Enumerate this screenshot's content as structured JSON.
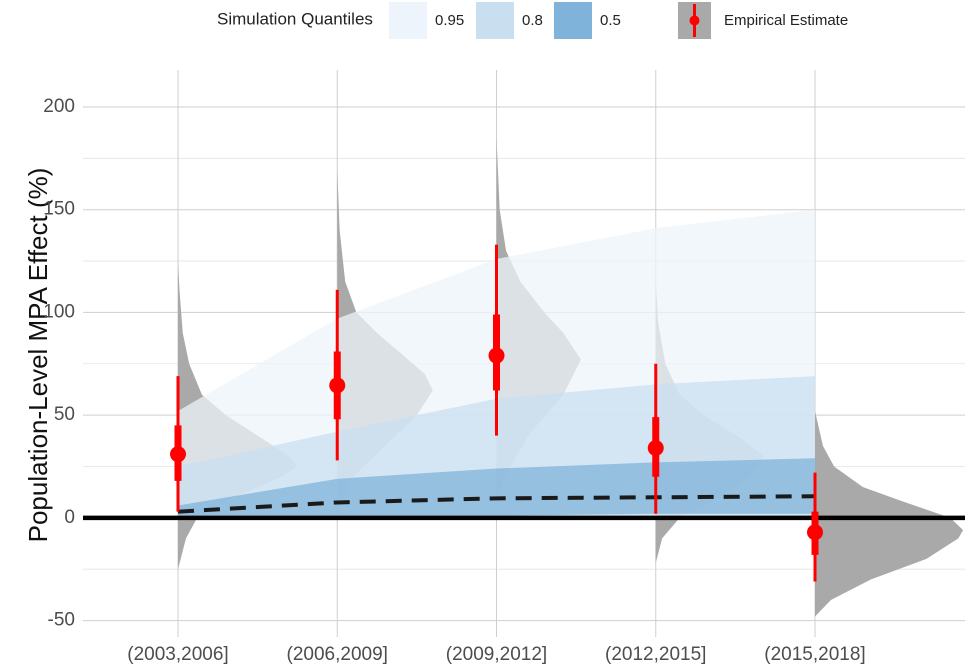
{
  "chart_data": {
    "type": "violin_ribbon",
    "y_label": "Population-Level MPA Effect (%)",
    "legend_title": "Simulation Quantiles",
    "categories": [
      "(2003,2006]",
      "(2006,2009]",
      "(2009,2012]",
      "(2012,2015]",
      "(2015,2018]"
    ],
    "ylim": [
      -58,
      218
    ],
    "yticks": [
      -50,
      0,
      50,
      100,
      150,
      200
    ],
    "minor_yticks": [
      -25,
      25,
      75,
      125,
      175
    ],
    "reference_line": 0,
    "grid": true,
    "bands": [
      {
        "name": "0.95",
        "color": "#edf4fb",
        "lower": [
          -1,
          -1,
          -1,
          0,
          0
        ],
        "upper": [
          52,
          97,
          126,
          141,
          150
        ]
      },
      {
        "name": "0.8",
        "color": "#c9dff0",
        "lower": [
          0,
          0,
          0,
          1,
          1
        ],
        "upper": [
          25,
          42,
          58,
          65,
          69
        ]
      },
      {
        "name": "0.5",
        "color": "#80b3da",
        "lower": [
          1,
          1,
          1,
          2,
          2
        ],
        "upper": [
          6,
          19,
          24,
          27,
          29
        ]
      }
    ],
    "median": {
      "values": [
        3,
        7.5,
        9.5,
        10,
        10.5
      ],
      "color": "#1a1a1a"
    },
    "violins": {
      "color": "#a9a9a9",
      "items": [
        {
          "y": [
            -25,
            -10,
            0,
            10,
            20,
            25,
            30,
            40,
            50,
            60,
            75,
            90,
            110,
            125
          ],
          "width": [
            0,
            0.05,
            0.12,
            0.35,
            0.65,
            0.75,
            0.7,
            0.5,
            0.3,
            0.15,
            0.07,
            0.03,
            0.01,
            0
          ]
        },
        {
          "y": [
            3,
            20,
            35,
            50,
            62,
            70,
            80,
            90,
            100,
            115,
            140,
            170
          ],
          "width": [
            0,
            0.1,
            0.3,
            0.5,
            0.6,
            0.55,
            0.4,
            0.25,
            0.12,
            0.05,
            0.015,
            0
          ]
        },
        {
          "y": [
            5,
            20,
            40,
            60,
            77,
            90,
            100,
            115,
            130,
            150,
            185
          ],
          "width": [
            0,
            0.05,
            0.2,
            0.42,
            0.53,
            0.42,
            0.3,
            0.15,
            0.06,
            0.02,
            0
          ]
        },
        {
          "y": [
            -22,
            -10,
            0,
            10,
            20,
            30,
            38,
            50,
            60,
            75,
            95,
            115
          ],
          "width": [
            0,
            0.04,
            0.15,
            0.4,
            0.6,
            0.68,
            0.55,
            0.3,
            0.15,
            0.06,
            0.015,
            0
          ]
        },
        {
          "y": [
            -48,
            -40,
            -30,
            -20,
            -10,
            -6,
            0,
            8,
            15,
            25,
            35,
            52
          ],
          "width": [
            0,
            0.1,
            0.35,
            0.7,
            0.9,
            0.93,
            0.85,
            0.55,
            0.3,
            0.12,
            0.05,
            0
          ]
        }
      ]
    },
    "estimate": {
      "name": "Empirical Estimate",
      "color": "#ff0000",
      "values": [
        31,
        64.5,
        79,
        34,
        -7
      ],
      "inner_lower": [
        18,
        48,
        62,
        20,
        -18
      ],
      "inner_upper": [
        45,
        81,
        99,
        49,
        3
      ],
      "outer_lower": [
        3,
        28,
        40,
        2,
        -31
      ],
      "outer_upper": [
        69,
        111,
        133,
        75,
        22
      ]
    }
  }
}
